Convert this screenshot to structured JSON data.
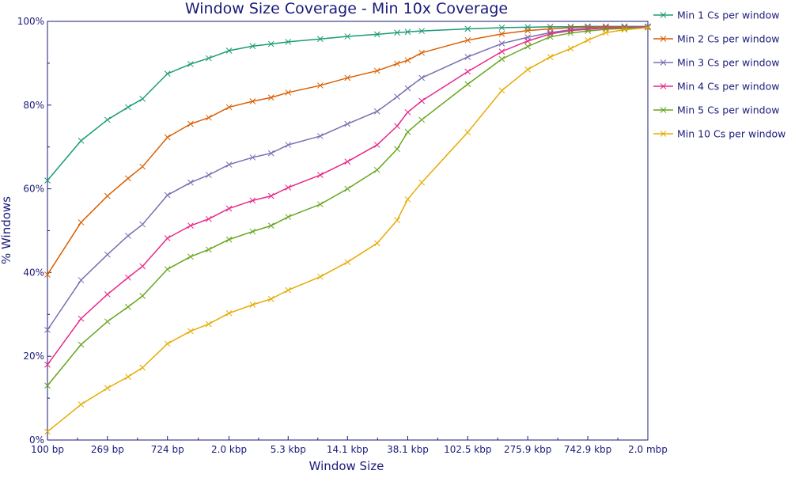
{
  "chart_data": {
    "type": "line",
    "title": "Window Size Coverage - Min 10x Coverage",
    "xlabel": "Window Size",
    "ylabel": "% Windows",
    "x_scale": "log",
    "x_ticks": [
      {
        "value": 100,
        "label": "100 bp"
      },
      {
        "value": 269,
        "label": "269 bp"
      },
      {
        "value": 724,
        "label": "724 bp"
      },
      {
        "value": 2000,
        "label": "2.0 kbp"
      },
      {
        "value": 5300,
        "label": "5.3 kbp"
      },
      {
        "value": 14100,
        "label": "14.1 kbp"
      },
      {
        "value": 38100,
        "label": "38.1 kbp"
      },
      {
        "value": 102500,
        "label": "102.5 kbp"
      },
      {
        "value": 275900,
        "label": "275.9 kbp"
      },
      {
        "value": 742900,
        "label": "742.9 kbp"
      },
      {
        "value": 2000000,
        "label": "2.0 mbp"
      }
    ],
    "xlim": [
      100,
      2000000
    ],
    "y_ticks": [
      {
        "value": 0,
        "label": "0%"
      },
      {
        "value": 20,
        "label": "20%"
      },
      {
        "value": 40,
        "label": "40%"
      },
      {
        "value": 60,
        "label": "60%"
      },
      {
        "value": 80,
        "label": "80%"
      },
      {
        "value": 100,
        "label": "100%"
      }
    ],
    "ylim": [
      0,
      100
    ],
    "grid": false,
    "legend_position": "right",
    "x": [
      100,
      174,
      269,
      378,
      480,
      724,
      1060,
      1430,
      2000,
      2950,
      4000,
      5300,
      9000,
      14100,
      23000,
      32000,
      38100,
      48000,
      102500,
      180000,
      275900,
      400000,
      560000,
      742900,
      1000000,
      1360000,
      2000000
    ],
    "series": [
      {
        "name": "Min 1 Cs per window",
        "color": "#1a9a76",
        "values": [
          62,
          71.5,
          76.5,
          79.5,
          81.5,
          87.5,
          89.8,
          91.2,
          93,
          94.1,
          94.6,
          95.1,
          95.8,
          96.4,
          96.9,
          97.3,
          97.5,
          97.7,
          98.2,
          98.5,
          98.6,
          98.7,
          98.7,
          98.8,
          98.8,
          98.8,
          98.8
        ]
      },
      {
        "name": "Min 2 Cs per window",
        "color": "#d95f02",
        "values": [
          39.5,
          52,
          58.3,
          62.5,
          65.3,
          72.3,
          75.5,
          77,
          79.5,
          80.9,
          81.8,
          83,
          84.7,
          86.5,
          88.2,
          89.9,
          90.7,
          92.5,
          95.5,
          97,
          97.8,
          98.2,
          98.5,
          98.6,
          98.7,
          98.7,
          98.7
        ]
      },
      {
        "name": "Min 3 Cs per window",
        "color": "#7570b3",
        "values": [
          26.3,
          38.2,
          44.3,
          48.8,
          51.5,
          58.5,
          61.5,
          63.3,
          65.8,
          67.5,
          68.5,
          70.5,
          72.6,
          75.5,
          78.5,
          82,
          84,
          86.5,
          91.5,
          94.7,
          96.2,
          97.3,
          98,
          98.3,
          98.5,
          98.6,
          98.7
        ]
      },
      {
        "name": "Min 4 Cs per window",
        "color": "#e7298a",
        "values": [
          18,
          29,
          34.8,
          38.8,
          41.5,
          48.2,
          51.2,
          52.8,
          55.3,
          57.2,
          58.3,
          60.3,
          63.3,
          66.5,
          70.5,
          75,
          78.3,
          81,
          88,
          92.8,
          95.3,
          97,
          97.8,
          98.1,
          98.4,
          98.5,
          98.6
        ]
      },
      {
        "name": "Min 5 Cs per window",
        "color": "#66a61e",
        "values": [
          13,
          22.8,
          28.3,
          31.8,
          34.4,
          40.8,
          43.8,
          45.5,
          47.9,
          49.8,
          51.2,
          53.3,
          56.3,
          60,
          64.5,
          69.5,
          73.6,
          76.5,
          85,
          91,
          94,
          96.3,
          97.2,
          97.7,
          98.1,
          98.3,
          98.5
        ]
      },
      {
        "name": "Min 10 Cs per window",
        "color": "#e6ab02",
        "values": [
          2,
          8.5,
          12.4,
          15.1,
          17.3,
          23,
          26,
          27.7,
          30.3,
          32.3,
          33.7,
          35.8,
          39,
          42.5,
          47,
          52.5,
          57.5,
          61.5,
          73.5,
          83.5,
          88.5,
          91.5,
          93.5,
          95.5,
          97.3,
          98,
          98.5
        ]
      }
    ]
  }
}
